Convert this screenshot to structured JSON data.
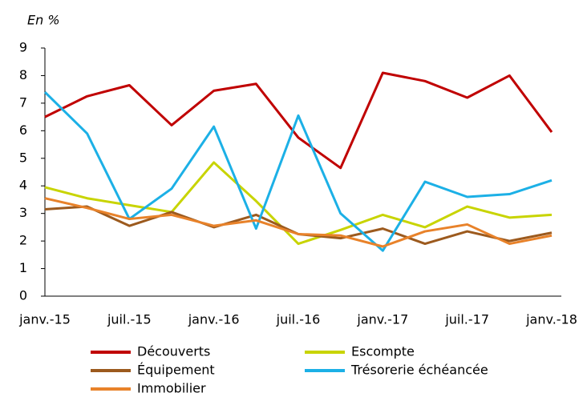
{
  "chart_data": {
    "type": "line",
    "y_label": "En %",
    "categories": [
      "janv.-15",
      null,
      "juil.-15",
      null,
      "janv.-16",
      null,
      "juil.-16",
      null,
      "janv.-17",
      null,
      "juil.-17",
      null,
      "janv.-18"
    ],
    "ylim": [
      0,
      9
    ],
    "yticks": [
      0,
      1,
      2,
      3,
      4,
      5,
      6,
      7,
      8,
      9
    ],
    "grid": false,
    "series": [
      {
        "name": "Découverts",
        "color": "#c00000",
        "values": [
          6.5,
          7.25,
          7.65,
          6.2,
          7.45,
          7.7,
          5.75,
          4.65,
          8.1,
          7.8,
          7.2,
          8.0,
          5.95
        ]
      },
      {
        "name": "Escompte",
        "color": "#c8d400",
        "values": [
          3.95,
          3.55,
          3.3,
          3.05,
          4.85,
          3.45,
          1.9,
          2.4,
          2.95,
          2.5,
          3.25,
          2.85,
          2.95
        ]
      },
      {
        "name": "Équipement",
        "color": "#9c5a1e",
        "values": [
          3.15,
          3.25,
          2.55,
          3.05,
          2.5,
          2.95,
          2.25,
          2.1,
          2.45,
          1.9,
          2.35,
          2.0,
          2.3
        ]
      },
      {
        "name": "Trésorerie échéancée",
        "color": "#1cb0e6",
        "values": [
          7.4,
          5.9,
          2.8,
          3.9,
          6.15,
          2.45,
          6.55,
          3.0,
          1.65,
          4.15,
          3.6,
          3.7,
          4.2
        ]
      },
      {
        "name": "Immobilier",
        "color": "#e8822a",
        "values": [
          3.55,
          3.2,
          2.8,
          2.95,
          2.55,
          2.75,
          2.25,
          2.2,
          1.8,
          2.35,
          2.6,
          1.9,
          2.2
        ]
      }
    ]
  }
}
